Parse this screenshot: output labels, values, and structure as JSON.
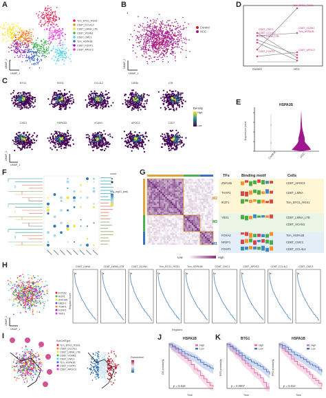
{
  "panels": {
    "A": "A",
    "B": "B",
    "C": "C",
    "D": "D",
    "E": "E",
    "F": "F",
    "G": "G",
    "H": "H",
    "I": "I",
    "J": "J",
    "K": "K"
  },
  "panel_A": {
    "xlabel": "UMAP_1",
    "ylabel": "UMAP_2",
    "legend": [
      {
        "label": "Tcm_BTG1_RGS1",
        "color": "#e6194b"
      },
      {
        "label": "CD8T_CCL4L2",
        "color": "#f58231"
      },
      {
        "label": "CD8T_LMNA_LTB",
        "color": "#ffe119"
      },
      {
        "label": "CD8T_VCAN1",
        "color": "#3cb44b"
      },
      {
        "label": "CD8T_CMC1",
        "color": "#42d4f4"
      },
      {
        "label": "Tcm_HSPA1B",
        "color": "#4363d8"
      },
      {
        "label": "CD8T_FOXP1",
        "color": "#911eb4"
      },
      {
        "label": "CD8T_APOC3",
        "color": "#f032e6"
      }
    ]
  },
  "panel_B": {
    "xlabel": "UMAP_1",
    "ylabel": "UMAP_2",
    "legend": [
      {
        "label": "Control",
        "color": "#d7191c"
      },
      {
        "label": "HCC",
        "color": "#a0168f"
      }
    ]
  },
  "panel_D": {
    "xticks": [
      "Control",
      "HCC"
    ],
    "labels": [
      "Tcm_BTG1_RGS1",
      "CD8T_CMC1",
      "CD8T_CCL4L2",
      "CD8T_LMNA_LTB",
      "CD8T_VCAN1",
      "Tcm_HSPA1B",
      "CD8T_FOXP1",
      "CD8T_APOC3"
    ]
  },
  "panel_C": {
    "genes": [
      "BTG1",
      "RGS1",
      "CCL4L2",
      "LMNA",
      "LTB",
      "CMC1",
      "HSPA1B",
      "VCAN1",
      "APOC3",
      "CD27"
    ],
    "legend_title": "Density",
    "legend_high": "High",
    "legend_low": "Low",
    "xlabel": "UMAP_1",
    "ylabel": "UMAP_2"
  },
  "panel_E": {
    "title": "HSPA1B",
    "ylabel": "Expression Level",
    "xticks": [
      "Control",
      "HCC"
    ]
  },
  "panel_G": {
    "headers": {
      "tfs": "TFs",
      "motif": "Binding motif",
      "cells": "Cells"
    },
    "modules": [
      "M2",
      "M3",
      "M1"
    ],
    "rows": [
      {
        "tf": "ZNF165",
        "cell": "CD8T_APOC3"
      },
      {
        "tf": "THAP1",
        "cell": "CD8T_LMNA"
      },
      {
        "tf": "IKZF1",
        "cell": "Tcm_BTG1_RGS1"
      },
      {
        "tf": "YBX1",
        "cell": "CD8T_LMNA_LTB"
      },
      {
        "tf": "",
        "cell": "CD8T_VCAN1"
      },
      {
        "tf": "FOXA2",
        "cell": "Tcm_HSPA1B"
      },
      {
        "tf": "NR2F1",
        "cell": "CD8T_CMC1"
      },
      {
        "tf": "FOXP1",
        "cell": "CD8T_CCL4L2"
      }
    ],
    "legend_low": "Low",
    "legend_high": "High"
  },
  "panel_F": {
    "legend_count": "count",
    "legend_padj": "neg_log10_padj"
  },
  "panel_H": {
    "xlabel": "UMAP_1",
    "ylabel": "UMAP_2",
    "legend": [
      "FOXA2",
      "IKZF1",
      "ZNF165",
      "NR2F1",
      "THAP1",
      "FOXP1",
      "YBX1"
    ],
    "plots": [
      "CD8T_LMNA",
      "CD8T_LMNA_LTB",
      "CD8T_VCAN1",
      "Tcm_BTG1_RGS1",
      "Tcm_HSPA1B",
      "CD8T_CMC1",
      "CD8T_APOC3",
      "CD8T_CCL4L2",
      "CD8T_CMC1"
    ],
    "xlab": "Regulons",
    "ylab": "Regulon Score"
  },
  "panel_I": {
    "legend_title": "SubCellType",
    "legend": [
      "Tcm_BTG1_RGS1",
      "CD8T_CCL4L2",
      "CD8T_LMNA_LTB",
      "CD8T_VCAN1",
      "CD8T_CMC1",
      "Tcm_HSPA1B",
      "CD8T_FOXP1",
      "CD8T_APOC3"
    ],
    "legend2_title": "Pseudotime"
  },
  "panel_J": {
    "title": "HSPA1B",
    "legend_high": "High",
    "legend_low": "Low",
    "pvalue": "p = 0.016",
    "ylabel": "OS probability",
    "xlabel": "Time"
  },
  "panel_K": [
    {
      "title": "BTG1",
      "pvalue": "p = 0.0007",
      "ylabel": "RFS probability",
      "xlabel": "Time"
    },
    {
      "title": "HSPA1B",
      "pvalue": "p = 0.012",
      "ylabel": "RFS probability",
      "xlabel": "Time"
    }
  ],
  "colors": {
    "density_dark": "#440154",
    "density_mid": "#21918c",
    "density_high": "#fde725",
    "hcc": "#a0168f",
    "heat_high": "#8e2a7a",
    "km_high": "#e86aa8",
    "km_low": "#4a72c4"
  }
}
